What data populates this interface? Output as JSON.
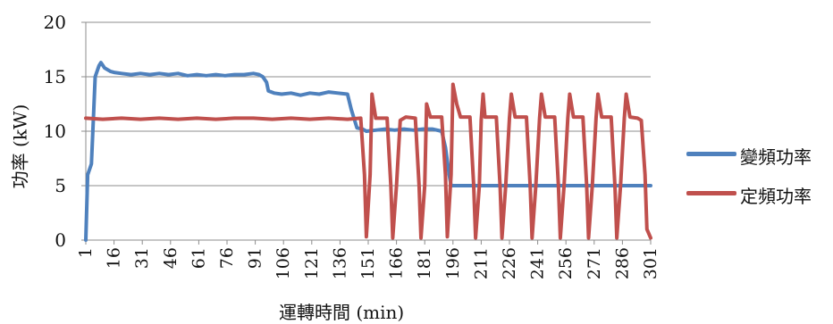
{
  "chart_data": {
    "type": "line",
    "xlabel": "運轉時間 (min)",
    "ylabel": "功率 (kW)",
    "xlim": [
      1,
      301
    ],
    "ylim": [
      0,
      20
    ],
    "yticks": [
      0,
      5,
      10,
      15,
      20
    ],
    "xticks": [
      1,
      16,
      31,
      46,
      61,
      76,
      91,
      106,
      121,
      136,
      151,
      166,
      181,
      196,
      211,
      226,
      241,
      256,
      271,
      286,
      301
    ],
    "grid": "horizontal",
    "legend_position": "right",
    "series": [
      {
        "name": "變頻功率",
        "color": "#4F81BD",
        "points": [
          [
            1,
            0
          ],
          [
            2,
            6
          ],
          [
            4,
            7
          ],
          [
            6,
            15
          ],
          [
            8,
            16
          ],
          [
            9,
            16.3
          ],
          [
            11,
            15.8
          ],
          [
            14,
            15.5
          ],
          [
            16,
            15.4
          ],
          [
            20,
            15.3
          ],
          [
            25,
            15.2
          ],
          [
            30,
            15.3
          ],
          [
            35,
            15.2
          ],
          [
            40,
            15.3
          ],
          [
            45,
            15.2
          ],
          [
            50,
            15.3
          ],
          [
            55,
            15.1
          ],
          [
            60,
            15.2
          ],
          [
            65,
            15.1
          ],
          [
            70,
            15.2
          ],
          [
            75,
            15.1
          ],
          [
            80,
            15.2
          ],
          [
            85,
            15.2
          ],
          [
            90,
            15.3
          ],
          [
            93,
            15.2
          ],
          [
            95,
            15
          ],
          [
            97,
            14.5
          ],
          [
            98,
            13.7
          ],
          [
            101,
            13.5
          ],
          [
            105,
            13.4
          ],
          [
            110,
            13.5
          ],
          [
            115,
            13.3
          ],
          [
            120,
            13.5
          ],
          [
            125,
            13.4
          ],
          [
            130,
            13.6
          ],
          [
            135,
            13.5
          ],
          [
            140,
            13.4
          ],
          [
            142,
            12
          ],
          [
            145,
            10.3
          ],
          [
            148,
            10.2
          ],
          [
            150,
            10
          ],
          [
            155,
            10.1
          ],
          [
            160,
            10.2
          ],
          [
            165,
            10.1
          ],
          [
            170,
            10.2
          ],
          [
            175,
            10.1
          ],
          [
            180,
            10.2
          ],
          [
            185,
            10.2
          ],
          [
            190,
            10
          ],
          [
            192,
            8.5
          ],
          [
            194,
            6
          ],
          [
            195,
            5
          ],
          [
            200,
            5
          ],
          [
            220,
            5
          ],
          [
            240,
            5
          ],
          [
            260,
            5
          ],
          [
            280,
            5
          ],
          [
            301,
            5
          ]
        ]
      },
      {
        "name": "定頻功率",
        "color": "#C0504D",
        "points": [
          [
            1,
            11.2
          ],
          [
            10,
            11.1
          ],
          [
            20,
            11.2
          ],
          [
            30,
            11.1
          ],
          [
            40,
            11.2
          ],
          [
            50,
            11.1
          ],
          [
            60,
            11.2
          ],
          [
            70,
            11.1
          ],
          [
            80,
            11.2
          ],
          [
            90,
            11.2
          ],
          [
            100,
            11.1
          ],
          [
            110,
            11.2
          ],
          [
            120,
            11.1
          ],
          [
            130,
            11.2
          ],
          [
            140,
            11.1
          ],
          [
            147,
            11.2
          ],
          [
            149,
            6
          ],
          [
            150,
            0.3
          ],
          [
            152,
            6
          ],
          [
            153,
            13.4
          ],
          [
            155,
            11.2
          ],
          [
            161,
            11.2
          ],
          [
            163,
            5
          ],
          [
            164,
            0.2
          ],
          [
            166,
            5
          ],
          [
            168,
            11
          ],
          [
            171,
            11.3
          ],
          [
            176,
            11.2
          ],
          [
            178,
            5
          ],
          [
            179,
            0.2
          ],
          [
            181,
            5
          ],
          [
            182,
            12.5
          ],
          [
            184,
            11.3
          ],
          [
            190,
            11.3
          ],
          [
            192,
            6
          ],
          [
            193,
            0.3
          ],
          [
            195,
            6
          ],
          [
            196,
            14.3
          ],
          [
            198,
            12.5
          ],
          [
            200,
            11.3
          ],
          [
            205,
            11.3
          ],
          [
            207,
            5
          ],
          [
            208,
            0.2
          ],
          [
            210,
            5
          ],
          [
            211,
            11
          ],
          [
            212,
            13.4
          ],
          [
            213,
            11.3
          ],
          [
            219,
            11.3
          ],
          [
            221,
            5
          ],
          [
            222,
            0.2
          ],
          [
            224,
            5
          ],
          [
            226,
            11.2
          ],
          [
            227,
            13.4
          ],
          [
            229,
            11.3
          ],
          [
            235,
            11.3
          ],
          [
            237,
            5
          ],
          [
            238,
            0.2
          ],
          [
            240,
            5
          ],
          [
            242,
            11.2
          ],
          [
            243,
            13.4
          ],
          [
            245,
            11.3
          ],
          [
            250,
            11.3
          ],
          [
            252,
            5
          ],
          [
            253,
            0.2
          ],
          [
            255,
            5
          ],
          [
            257,
            11.2
          ],
          [
            258,
            13.4
          ],
          [
            260,
            11.3
          ],
          [
            265,
            11.3
          ],
          [
            267,
            5
          ],
          [
            268,
            0.2
          ],
          [
            270,
            5
          ],
          [
            272,
            11.2
          ],
          [
            273,
            13.4
          ],
          [
            275,
            11.3
          ],
          [
            280,
            11.3
          ],
          [
            282,
            5
          ],
          [
            283,
            0.2
          ],
          [
            285,
            5
          ],
          [
            287,
            11.2
          ],
          [
            288,
            13.4
          ],
          [
            290,
            11.3
          ],
          [
            294,
            11.2
          ],
          [
            296,
            11
          ],
          [
            298,
            6
          ],
          [
            299,
            1
          ],
          [
            301,
            0.2
          ]
        ]
      }
    ]
  }
}
